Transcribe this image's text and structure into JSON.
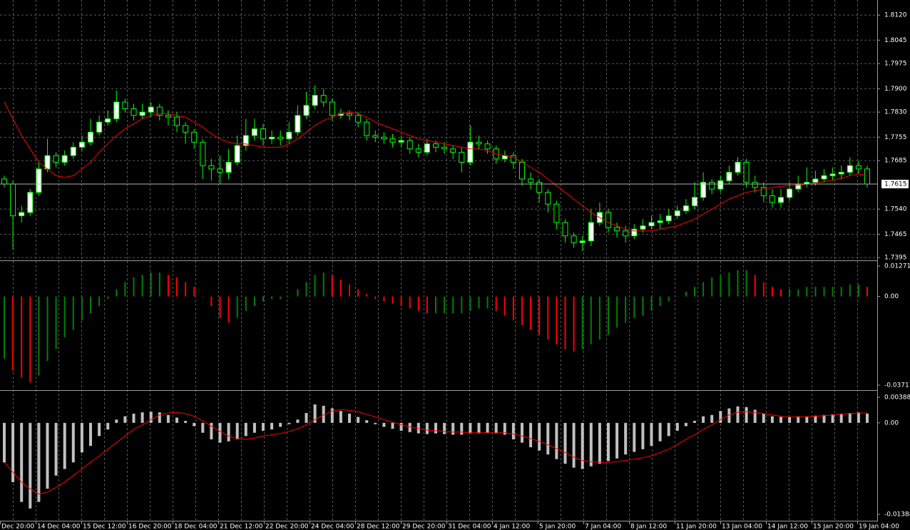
{
  "chart_data": [
    {
      "type": "candlestick",
      "open": [
        1.763,
        1.7615,
        1.752,
        1.753,
        1.759,
        1.766,
        1.77,
        1.768,
        1.77,
        1.7725,
        1.774,
        1.777,
        1.78,
        1.781,
        1.786,
        1.784,
        1.782,
        1.783,
        1.7845,
        1.782,
        1.7815,
        1.779,
        1.777,
        1.774,
        1.767,
        1.766,
        1.765,
        1.768,
        1.773,
        1.776,
        1.778,
        1.775,
        1.7755,
        1.775,
        1.777,
        1.782,
        1.785,
        1.788,
        1.786,
        1.782,
        1.7825,
        1.782,
        1.78,
        1.776,
        1.7755,
        1.775,
        1.774,
        1.7745,
        1.772,
        1.771,
        1.7735,
        1.7725,
        1.772,
        1.771,
        1.768,
        1.774,
        1.7735,
        1.772,
        1.769,
        1.77,
        1.768,
        1.763,
        1.762,
        1.759,
        1.7555,
        1.75,
        1.746,
        1.744,
        1.7445,
        1.75,
        1.753,
        1.7485,
        1.7475,
        1.746,
        1.748,
        1.749,
        1.75,
        1.7505,
        1.752,
        1.7535,
        1.755,
        1.7575,
        1.762,
        1.76,
        1.7625,
        1.765,
        1.768,
        1.762,
        1.7605,
        1.758,
        1.756,
        1.7575,
        1.76,
        1.7615,
        1.762,
        1.763,
        1.764,
        1.7645,
        1.765,
        1.767,
        1.766
      ],
      "high": [
        1.764,
        1.7625,
        1.755,
        1.76,
        1.768,
        1.775,
        1.771,
        1.7715,
        1.774,
        1.776,
        1.781,
        1.782,
        1.7835,
        1.7895,
        1.787,
        1.7855,
        1.7855,
        1.786,
        1.7855,
        1.7835,
        1.783,
        1.78,
        1.778,
        1.775,
        1.769,
        1.77,
        1.772,
        1.776,
        1.781,
        1.781,
        1.7795,
        1.7775,
        1.7775,
        1.78,
        1.785,
        1.789,
        1.791,
        1.79,
        1.787,
        1.784,
        1.7835,
        1.783,
        1.781,
        1.7775,
        1.777,
        1.7765,
        1.776,
        1.7755,
        1.7735,
        1.775,
        1.7745,
        1.774,
        1.773,
        1.7725,
        1.779,
        1.776,
        1.7745,
        1.773,
        1.7715,
        1.771,
        1.769,
        1.765,
        1.763,
        1.76,
        1.7565,
        1.751,
        1.747,
        1.746,
        1.754,
        1.756,
        1.754,
        1.75,
        1.749,
        1.7495,
        1.751,
        1.752,
        1.7525,
        1.754,
        1.755,
        1.757,
        1.762,
        1.765,
        1.763,
        1.764,
        1.767,
        1.7695,
        1.769,
        1.764,
        1.762,
        1.76,
        1.76,
        1.762,
        1.764,
        1.7665,
        1.7655,
        1.766,
        1.7665,
        1.767,
        1.7695,
        1.7685,
        1.767
      ],
      "low": [
        1.7605,
        1.742,
        1.75,
        1.752,
        1.758,
        1.765,
        1.7665,
        1.767,
        1.769,
        1.7715,
        1.773,
        1.776,
        1.779,
        1.78,
        1.783,
        1.7805,
        1.781,
        1.7815,
        1.7805,
        1.779,
        1.777,
        1.7735,
        1.772,
        1.763,
        1.7625,
        1.7615,
        1.763,
        1.767,
        1.7715,
        1.7745,
        1.773,
        1.7735,
        1.773,
        1.7735,
        1.776,
        1.781,
        1.784,
        1.7845,
        1.7805,
        1.781,
        1.7805,
        1.7785,
        1.7745,
        1.774,
        1.7735,
        1.7725,
        1.7725,
        1.7705,
        1.7695,
        1.77,
        1.771,
        1.7705,
        1.769,
        1.765,
        1.767,
        1.772,
        1.7705,
        1.7675,
        1.768,
        1.766,
        1.761,
        1.76,
        1.756,
        1.753,
        1.748,
        1.744,
        1.7425,
        1.7415,
        1.743,
        1.749,
        1.747,
        1.7455,
        1.744,
        1.745,
        1.747,
        1.748,
        1.748,
        1.7495,
        1.751,
        1.7525,
        1.754,
        1.7565,
        1.7585,
        1.759,
        1.7615,
        1.764,
        1.7605,
        1.759,
        1.756,
        1.7545,
        1.7545,
        1.7565,
        1.759,
        1.7605,
        1.761,
        1.762,
        1.7625,
        1.763,
        1.764,
        1.7645,
        1.7605
      ],
      "close": [
        1.7615,
        1.752,
        1.753,
        1.759,
        1.766,
        1.77,
        1.768,
        1.77,
        1.7725,
        1.774,
        1.777,
        1.78,
        1.781,
        1.786,
        1.784,
        1.782,
        1.783,
        1.7845,
        1.782,
        1.7815,
        1.779,
        1.777,
        1.774,
        1.767,
        1.766,
        1.765,
        1.768,
        1.773,
        1.776,
        1.778,
        1.775,
        1.7755,
        1.775,
        1.777,
        1.782,
        1.785,
        1.788,
        1.786,
        1.782,
        1.7825,
        1.782,
        1.78,
        1.776,
        1.7755,
        1.775,
        1.774,
        1.7745,
        1.772,
        1.771,
        1.7735,
        1.7725,
        1.772,
        1.771,
        1.768,
        1.774,
        1.7735,
        1.772,
        1.769,
        1.77,
        1.768,
        1.763,
        1.762,
        1.759,
        1.7555,
        1.75,
        1.746,
        1.744,
        1.7445,
        1.75,
        1.753,
        1.7485,
        1.7475,
        1.746,
        1.748,
        1.749,
        1.75,
        1.7505,
        1.752,
        1.7535,
        1.755,
        1.7575,
        1.762,
        1.76,
        1.7625,
        1.765,
        1.768,
        1.762,
        1.7605,
        1.758,
        1.756,
        1.7575,
        1.76,
        1.7615,
        1.762,
        1.763,
        1.764,
        1.7645,
        1.765,
        1.767,
        1.766,
        1.7615
      ],
      "series": [
        {
          "color": "#ff0000",
          "values": [
            1.786,
            1.781,
            1.776,
            1.772,
            1.768,
            1.766,
            1.764,
            1.7635,
            1.764,
            1.766,
            1.768,
            1.771,
            1.7735,
            1.776,
            1.778,
            1.7795,
            1.781,
            1.782,
            1.7825,
            1.7825,
            1.782,
            1.7815,
            1.78,
            1.7785,
            1.7765,
            1.775,
            1.774,
            1.7735,
            1.7735,
            1.773,
            1.7725,
            1.7725,
            1.7725,
            1.7735,
            1.775,
            1.777,
            1.779,
            1.7805,
            1.7815,
            1.7825,
            1.783,
            1.7825,
            1.7815,
            1.78,
            1.779,
            1.778,
            1.777,
            1.776,
            1.775,
            1.7745,
            1.774,
            1.7735,
            1.773,
            1.7725,
            1.772,
            1.772,
            1.7715,
            1.7705,
            1.77,
            1.7695,
            1.768,
            1.7665,
            1.765,
            1.763,
            1.761,
            1.759,
            1.757,
            1.755,
            1.753,
            1.7515,
            1.75,
            1.749,
            1.748,
            1.7475,
            1.7475,
            1.7475,
            1.748,
            1.7485,
            1.749,
            1.75,
            1.751,
            1.7525,
            1.754,
            1.7555,
            1.757,
            1.758,
            1.759,
            1.7595,
            1.76,
            1.7605,
            1.7608,
            1.761,
            1.7612,
            1.7615,
            1.7618,
            1.7622,
            1.7627,
            1.7632,
            1.764,
            1.7645,
            1.764
          ]
        }
      ],
      "up_color": "#ffffff",
      "down_color": "#000000",
      "wick_color": "#00ff00",
      "ylim": [
        1.7389,
        1.8165
      ],
      "yticks": [
        {
          "value": 1.812,
          "label": "1.8120"
        },
        1.8045,
        1.7975,
        {
          "value": 1.79,
          "label": "1.7900"
        },
        {
          "value": 1.783,
          "label": "1.7830"
        },
        1.7755,
        1.7685,
        {
          "value": 1.754,
          "label": "1.7540"
        },
        1.7465,
        1.7395
      ],
      "current_price": 1.7615,
      "grid": true
    },
    {
      "type": "histogram",
      "values": [
        -0.026,
        -0.031,
        -0.034,
        -0.036,
        -0.033,
        -0.027,
        -0.022,
        -0.017,
        -0.014,
        -0.01,
        -0.007,
        -0.004,
        -0.001,
        0.003,
        0.006,
        0.008,
        0.009,
        0.01,
        0.01,
        0.009,
        0.008,
        0.006,
        0.004,
        0.0,
        -0.004,
        -0.009,
        -0.011,
        -0.009,
        -0.006,
        -0.004,
        -0.002,
        -0.001,
        -0.001,
        0.0,
        0.003,
        0.006,
        0.009,
        0.01,
        0.009,
        0.007,
        0.005,
        0.003,
        0.001,
        -0.001,
        -0.002,
        -0.003,
        -0.004,
        -0.005,
        -0.006,
        -0.007,
        -0.007,
        -0.007,
        -0.007,
        -0.007,
        -0.006,
        -0.005,
        -0.005,
        -0.006,
        -0.008,
        -0.01,
        -0.012,
        -0.014,
        -0.016,
        -0.018,
        -0.02,
        -0.022,
        -0.023,
        -0.022,
        -0.02,
        -0.018,
        -0.016,
        -0.013,
        -0.011,
        -0.009,
        -0.008,
        -0.006,
        -0.004,
        -0.002,
        0.0,
        0.002,
        0.004,
        0.006,
        0.008,
        0.009,
        0.01,
        0.011,
        0.011,
        0.009,
        0.006,
        0.004,
        0.003,
        0.003,
        0.003,
        0.004,
        0.004,
        0.004,
        0.004,
        0.004,
        0.005,
        0.005,
        0.004
      ],
      "up_color": "#008000",
      "down_color": "#ff0000",
      "ylim": [
        -0.03711,
        0.01271
      ],
      "yticks": [
        0.01271,
        {
          "value": 0,
          "label": "0.00"
        },
        -0.03711
      ]
    },
    {
      "type": "bar",
      "values": [
        -0.006,
        -0.009,
        -0.012,
        -0.013,
        -0.012,
        -0.01,
        -0.008,
        -0.007,
        -0.006,
        -0.0045,
        -0.0035,
        -0.002,
        -0.001,
        0.0005,
        0.001,
        0.0014,
        0.0016,
        0.0017,
        0.0016,
        0.0012,
        0.0008,
        0.0003,
        -0.0005,
        -0.0015,
        -0.0025,
        -0.003,
        -0.0028,
        -0.0025,
        -0.002,
        -0.0015,
        -0.0012,
        -0.001,
        -0.0006,
        -0.0002,
        0.0005,
        0.0015,
        0.0028,
        0.0026,
        0.0022,
        0.0018,
        0.0014,
        0.0009,
        0.0004,
        -0.0002,
        -0.0006,
        -0.0009,
        -0.0012,
        -0.0014,
        -0.0016,
        -0.0017,
        -0.0016,
        -0.0017,
        -0.0018,
        -0.0018,
        -0.0016,
        -0.0016,
        -0.0015,
        -0.0016,
        -0.0018,
        -0.0025,
        -0.003,
        -0.0037,
        -0.0042,
        -0.0048,
        -0.0055,
        -0.0062,
        -0.0068,
        -0.007,
        -0.0066,
        -0.0062,
        -0.0058,
        -0.0054,
        -0.0048,
        -0.0044,
        -0.004,
        -0.0035,
        -0.0028,
        -0.002,
        -0.0012,
        -0.0005,
        0.0003,
        0.001,
        0.0012,
        0.0018,
        0.0022,
        0.0025,
        0.0024,
        0.002,
        0.0014,
        0.001,
        0.0009,
        0.0009,
        0.001,
        0.001,
        0.0011,
        0.0012,
        0.0013,
        0.0014,
        0.0015,
        0.0016,
        0.0014
      ],
      "color": "#c0c0c0",
      "series": [
        {
          "color": "#ff0000",
          "values": [
            -0.006,
            -0.0075,
            -0.009,
            -0.01,
            -0.0108,
            -0.0105,
            -0.0098,
            -0.009,
            -0.008,
            -0.007,
            -0.006,
            -0.005,
            -0.004,
            -0.003,
            -0.002,
            -0.001,
            -0.0003,
            0.0005,
            0.0012,
            0.0015,
            0.0016,
            0.0014,
            0.001,
            0.0003,
            -0.0005,
            -0.0013,
            -0.002,
            -0.0024,
            -0.0025,
            -0.0023,
            -0.002,
            -0.0018,
            -0.0016,
            -0.0013,
            -0.0009,
            -0.0003,
            0.0005,
            0.0012,
            0.0018,
            0.002,
            0.0019,
            0.0017,
            0.0013,
            0.0009,
            0.0005,
            0.0001,
            -0.0003,
            -0.0006,
            -0.0009,
            -0.0011,
            -0.0012,
            -0.0013,
            -0.0014,
            -0.0014,
            -0.0015,
            -0.0015,
            -0.0015,
            -0.0015,
            -0.0015,
            -0.0017,
            -0.002,
            -0.0024,
            -0.0028,
            -0.0033,
            -0.0039,
            -0.0045,
            -0.0052,
            -0.0057,
            -0.0059,
            -0.006,
            -0.006,
            -0.0059,
            -0.0057,
            -0.0055,
            -0.0053,
            -0.005,
            -0.0045,
            -0.004,
            -0.0033,
            -0.0025,
            -0.0018,
            -0.001,
            -0.0003,
            0.0005,
            0.0012,
            0.0016,
            0.0017,
            0.0016,
            0.0014,
            0.0012,
            0.001,
            0.0009,
            0.0009,
            0.0009,
            0.001,
            0.0011,
            0.0012,
            0.0013,
            0.0014,
            0.0015,
            0.0015
          ]
        }
      ],
      "ylim": [
        -0.01388,
        0.00388
      ],
      "yticks": [
        0.00388,
        {
          "value": 0,
          "label": "0.00"
        },
        -0.01388
      ]
    }
  ],
  "time_axis": {
    "labels": [
      "Dec 20:00",
      "14 Dec 04:00",
      "15 Dec 12:00",
      "16 Dec 20:00",
      "18 Dec 04:00",
      "21 Dec 12:00",
      "22 Dec 20:00",
      "24 Dec 04:00",
      "28 Dec 12:00",
      "29 Dec 20:00",
      "31 Dec 04:00",
      "4 Jan 12:00",
      "5 Jan 20:00",
      "7 Jan 04:00",
      "8 Jan 12:00",
      "11 Jan 20:00",
      "13 Jan 04:00",
      "14 Jan 12:00",
      "15 Jan 20:00",
      "19 Jan 04:00"
    ]
  }
}
